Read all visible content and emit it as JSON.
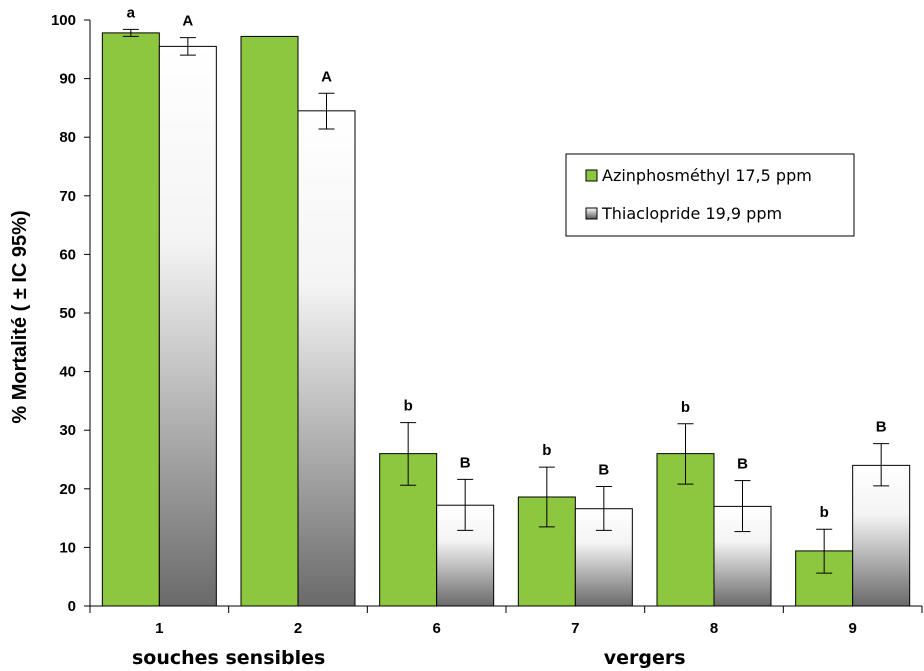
{
  "chart_data": {
    "type": "bar",
    "ylabel": "% Mortalité ( ± IC 95%)",
    "ylim": [
      0,
      100
    ],
    "yticks": [
      "0",
      "10",
      "20",
      "30",
      "40",
      "50",
      "60",
      "70",
      "80",
      "90",
      "100"
    ],
    "categories": [
      "1",
      "2",
      "6",
      "7",
      "8",
      "9"
    ],
    "groups": [
      {
        "label": "souches sensibles",
        "categories": [
          "1",
          "2"
        ]
      },
      {
        "label": "vergers",
        "categories": [
          "6",
          "7",
          "8",
          "9"
        ]
      }
    ],
    "legend_position": "right",
    "series": [
      {
        "name": "Azinphosméthyl 17,5 ppm",
        "color": "#8dc63f",
        "values": [
          97.8,
          97.2,
          26.0,
          18.6,
          26.0,
          9.4
        ],
        "err_low": [
          97.2,
          null,
          20.6,
          13.5,
          20.8,
          5.6
        ],
        "err_high": [
          98.4,
          null,
          31.3,
          23.7,
          31.1,
          13.1
        ],
        "letters": [
          "a",
          "",
          "b",
          "b",
          "b",
          "b"
        ]
      },
      {
        "name": "Thiaclopride 19,9 ppm",
        "color": "#c8c8c8",
        "values": [
          95.5,
          84.5,
          17.2,
          16.6,
          17.0,
          24.0
        ],
        "err_low": [
          94.0,
          81.4,
          12.9,
          12.9,
          12.7,
          20.5
        ],
        "err_high": [
          97.0,
          87.5,
          21.6,
          20.4,
          21.4,
          27.7
        ],
        "letters": [
          "A",
          "A",
          "B",
          "B",
          "B",
          "B"
        ]
      }
    ]
  }
}
